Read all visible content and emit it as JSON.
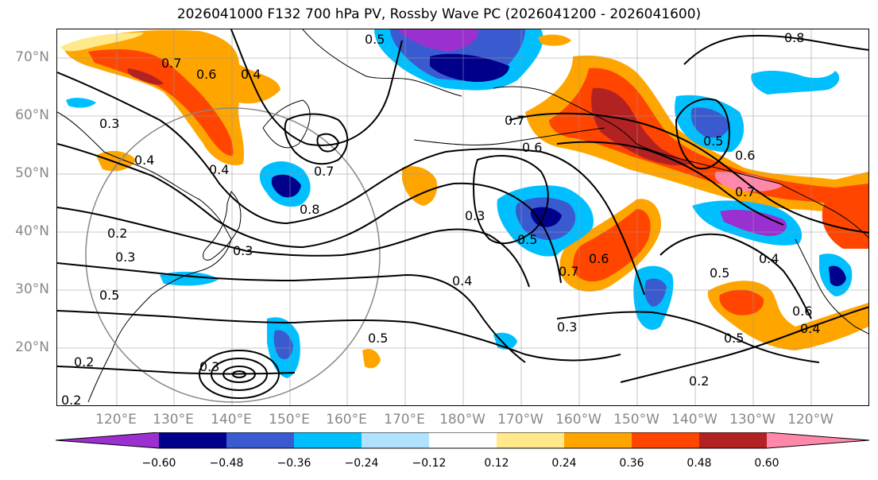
{
  "title": "2026041000 F132 700 hPa PV, Rossby Wave PC (2026041200 - 2026041600)",
  "lat_labels": [
    "70°N",
    "60°N",
    "50°N",
    "40°N",
    "30°N",
    "20°N"
  ],
  "lon_labels": [
    "120°E",
    "130°E",
    "140°E",
    "150°E",
    "160°E",
    "170°E",
    "180°W",
    "170°W",
    "160°W",
    "150°W",
    "140°W",
    "130°W",
    "120°W"
  ],
  "colorbar": {
    "levels": [
      "−0.60",
      "−0.48",
      "−0.36",
      "−0.24",
      "−0.12",
      "0.12",
      "0.24",
      "0.36",
      "0.48",
      "0.60"
    ],
    "colors": [
      "#9b30d0",
      "#00008b",
      "#3a5bd0",
      "#00bfff",
      "#b0e2ff",
      "#ffffff",
      "#ffe98a",
      "#ffa500",
      "#ff4500",
      "#b22222",
      "#ff88aa"
    ]
  },
  "contour_labels": [
    {
      "text": "0.5"
    },
    {
      "text": "0.8"
    },
    {
      "text": "0.7"
    },
    {
      "text": "0.6"
    },
    {
      "text": "0.4"
    },
    {
      "text": "0.3"
    },
    {
      "text": "0.4"
    },
    {
      "text": "0.4"
    },
    {
      "text": "0.7"
    },
    {
      "text": "0.8"
    },
    {
      "text": "0.7"
    },
    {
      "text": "0.6"
    },
    {
      "text": "0.3"
    },
    {
      "text": "0.5"
    },
    {
      "text": "0.2"
    },
    {
      "text": "0.3"
    },
    {
      "text": "0.3"
    },
    {
      "text": "0.5"
    },
    {
      "text": "0.4"
    },
    {
      "text": "0.5"
    },
    {
      "text": "0.7"
    },
    {
      "text": "0.6"
    },
    {
      "text": "0.3"
    },
    {
      "text": "0.2"
    },
    {
      "text": "0.3"
    },
    {
      "text": "0.2"
    },
    {
      "text": "0.2"
    },
    {
      "text": "0.5"
    },
    {
      "text": "0.4"
    },
    {
      "text": "0.5"
    },
    {
      "text": "0.6"
    },
    {
      "text": "0.4"
    },
    {
      "text": "0.5"
    },
    {
      "text": "0.7"
    },
    {
      "text": "0.6"
    }
  ]
}
